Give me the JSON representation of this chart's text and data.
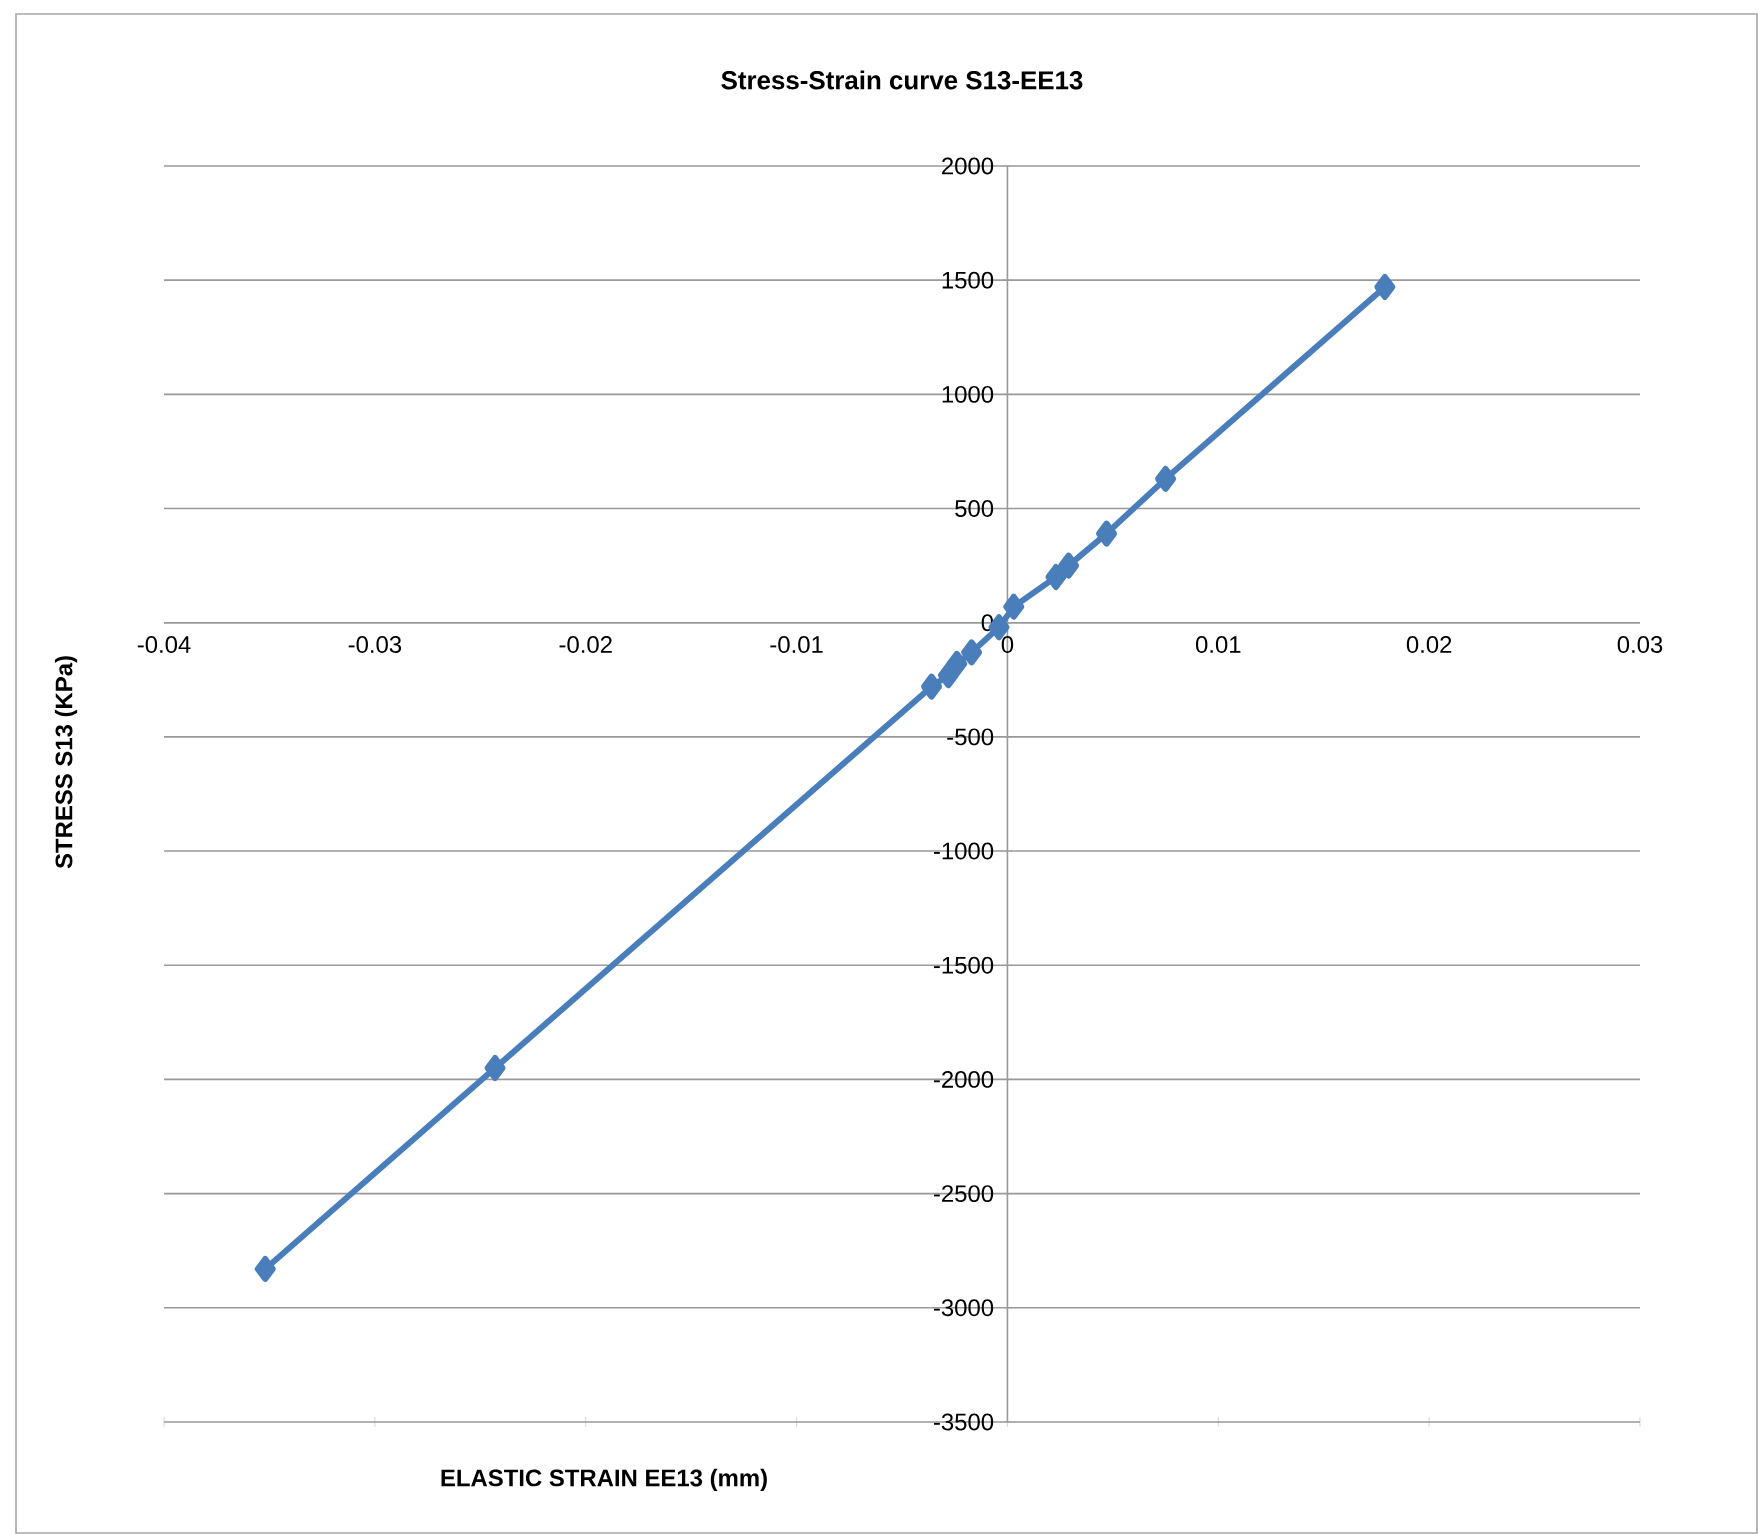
{
  "chart_data": {
    "type": "line",
    "title": "Stress-Strain curve S13-EE13",
    "xlabel": "ELASTIC STRAIN EE13  (mm)",
    "ylabel": "STRESS S13 (KPa)",
    "x": [
      -0.0352,
      -0.0243,
      -0.0036,
      -0.0028,
      -0.0024,
      -0.0017,
      -0.0004,
      0.0003,
      0.0023,
      0.0029,
      0.0047,
      0.0075,
      0.0179
    ],
    "series": [
      {
        "color": "#4a7ebb",
        "values": [
          -2830,
          -1950,
          -280,
          -230,
          -180,
          -130,
          -20,
          70,
          200,
          250,
          390,
          630,
          1470
        ]
      }
    ],
    "marker": "diamond",
    "line_style": "solid",
    "grid": "y",
    "xlim": [
      -0.04,
      0.03
    ],
    "xticks": [
      -0.04,
      -0.03,
      -0.02,
      -0.01,
      0,
      0.01,
      0.02,
      0.03
    ],
    "ylim": [
      -3500,
      2000
    ],
    "yticks": [
      -3500,
      -3000,
      -2500,
      -2000,
      -1500,
      -1000,
      -500,
      0,
      500,
      1000,
      1500,
      2000
    ]
  }
}
